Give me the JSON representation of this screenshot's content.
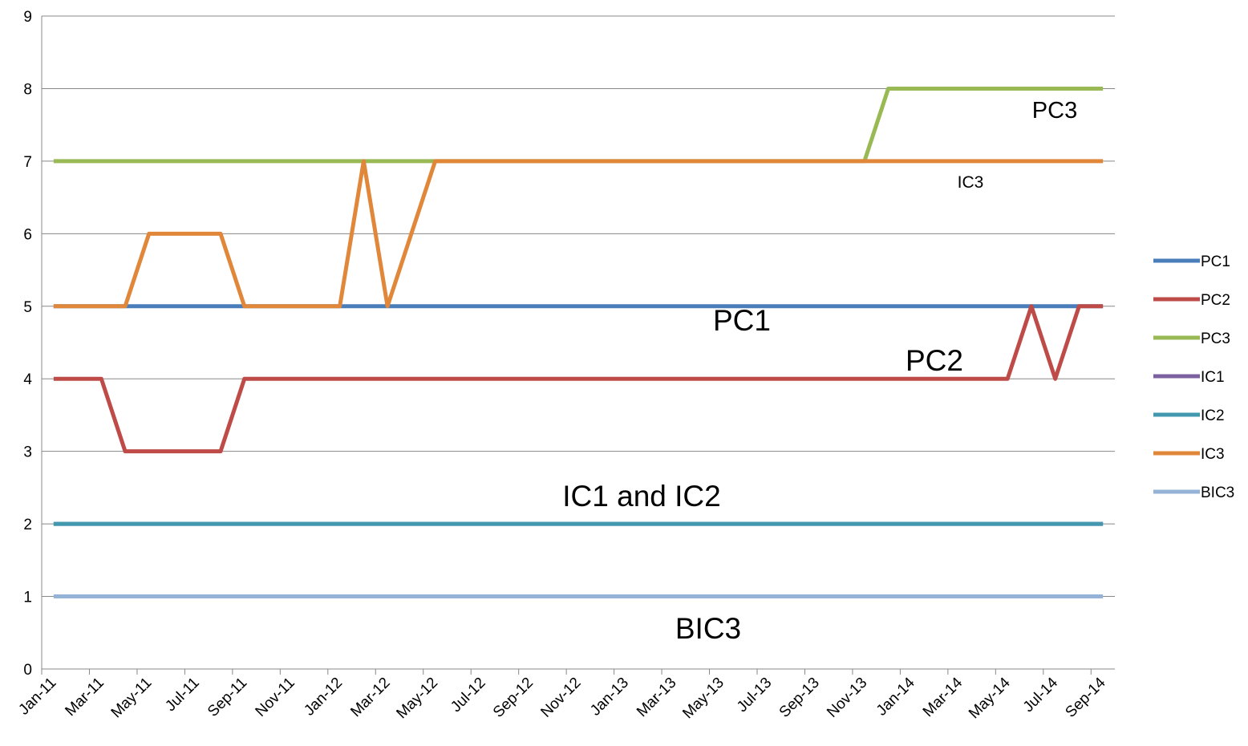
{
  "chart_data": {
    "type": "line",
    "categories": [
      "Jan-11",
      null,
      "Mar-11",
      null,
      "May-11",
      null,
      "Jul-11",
      null,
      "Sep-11",
      null,
      "Nov-11",
      null,
      "Jan-12",
      null,
      "Mar-12",
      null,
      "May-12",
      null,
      "Jul-12",
      null,
      "Sep-12",
      null,
      "Nov-12",
      null,
      "Jan-13",
      null,
      "Mar-13",
      null,
      "May-13",
      null,
      "Jul-13",
      null,
      "Sep-13",
      null,
      "Nov-13",
      null,
      "Jan-14",
      null,
      "Mar-14",
      null,
      "May-14",
      null,
      "Jul-14",
      null,
      "Sep-14"
    ],
    "series": [
      {
        "name": "PC1",
        "color": "#4a7ebb",
        "values": [
          5,
          5,
          5,
          5,
          5,
          5,
          5,
          5,
          5,
          5,
          5,
          5,
          5,
          5,
          5,
          5,
          5,
          5,
          5,
          5,
          5,
          5,
          5,
          5,
          5,
          5,
          5,
          5,
          5,
          5,
          5,
          5,
          5,
          5,
          5,
          5,
          5,
          5,
          5,
          5,
          5,
          5,
          5,
          5,
          5
        ]
      },
      {
        "name": "PC2",
        "color": "#be4b48",
        "values": [
          4,
          4,
          4,
          3,
          3,
          3,
          3,
          3,
          4,
          4,
          4,
          4,
          4,
          4,
          4,
          4,
          4,
          4,
          4,
          4,
          4,
          4,
          4,
          4,
          4,
          4,
          4,
          4,
          4,
          4,
          4,
          4,
          4,
          4,
          4,
          4,
          4,
          4,
          4,
          4,
          4,
          5,
          4,
          5,
          5
        ]
      },
      {
        "name": "PC3",
        "color": "#98b954",
        "values": [
          7,
          7,
          7,
          7,
          7,
          7,
          7,
          7,
          7,
          7,
          7,
          7,
          7,
          7,
          7,
          7,
          7,
          7,
          7,
          7,
          7,
          7,
          7,
          7,
          7,
          7,
          7,
          7,
          7,
          7,
          7,
          7,
          7,
          7,
          7,
          8,
          8,
          8,
          8,
          8,
          8,
          8,
          8,
          8,
          8
        ]
      },
      {
        "name": "IC1",
        "color": "#7d60a0",
        "values": [
          2,
          2,
          2,
          2,
          2,
          2,
          2,
          2,
          2,
          2,
          2,
          2,
          2,
          2,
          2,
          2,
          2,
          2,
          2,
          2,
          2,
          2,
          2,
          2,
          2,
          2,
          2,
          2,
          2,
          2,
          2,
          2,
          2,
          2,
          2,
          2,
          2,
          2,
          2,
          2,
          2,
          2,
          2,
          2,
          2
        ]
      },
      {
        "name": "IC2",
        "color": "#4198af",
        "values": [
          2,
          2,
          2,
          2,
          2,
          2,
          2,
          2,
          2,
          2,
          2,
          2,
          2,
          2,
          2,
          2,
          2,
          2,
          2,
          2,
          2,
          2,
          2,
          2,
          2,
          2,
          2,
          2,
          2,
          2,
          2,
          2,
          2,
          2,
          2,
          2,
          2,
          2,
          2,
          2,
          2,
          2,
          2,
          2,
          2
        ]
      },
      {
        "name": "IC3",
        "color": "#e0873a",
        "values": [
          5,
          5,
          5,
          5,
          6,
          6,
          6,
          6,
          5,
          5,
          5,
          5,
          5,
          7,
          5,
          6,
          7,
          7,
          7,
          7,
          7,
          7,
          7,
          7,
          7,
          7,
          7,
          7,
          7,
          7,
          7,
          7,
          7,
          7,
          7,
          7,
          7,
          7,
          7,
          7,
          7,
          7,
          7,
          7,
          7
        ]
      },
      {
        "name": "BIC3",
        "color": "#95b3d7",
        "values": [
          1,
          1,
          1,
          1,
          1,
          1,
          1,
          1,
          1,
          1,
          1,
          1,
          1,
          1,
          1,
          1,
          1,
          1,
          1,
          1,
          1,
          1,
          1,
          1,
          1,
          1,
          1,
          1,
          1,
          1,
          1,
          1,
          1,
          1,
          1,
          1,
          1,
          1,
          1,
          1,
          1,
          1,
          1,
          1,
          1
        ]
      }
    ],
    "annotations": [
      "PC3",
      "IC3",
      "PC1",
      "PC2",
      "IC1 and IC2",
      "BIC3"
    ],
    "ylim": [
      0,
      9
    ],
    "yticks": [
      0,
      1,
      2,
      3,
      4,
      5,
      6,
      7,
      8,
      9
    ],
    "grid": true,
    "legend": "right"
  }
}
